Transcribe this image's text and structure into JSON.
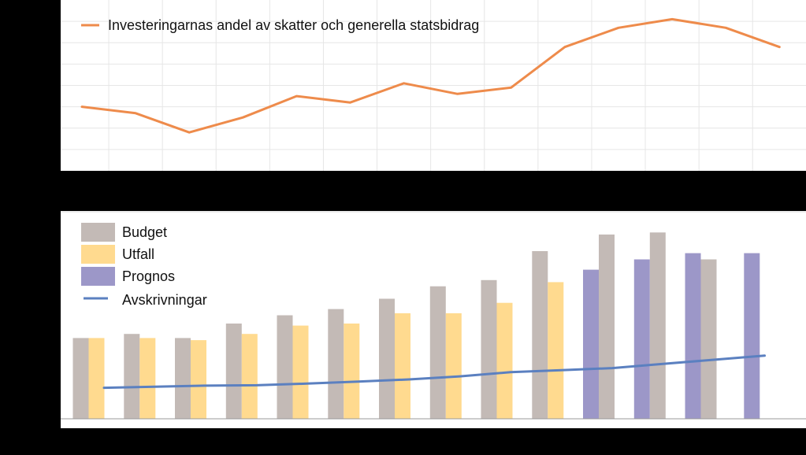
{
  "chart_data": [
    {
      "type": "line",
      "title": "",
      "x_count": 14,
      "ylim": [
        0,
        8
      ],
      "grid": true,
      "legend_placement": "top-left",
      "series": [
        {
          "name": "Investeringarnas andel av skatter och generella statsbidrag",
          "color": "#EE8B4B",
          "values": [
            3.0,
            2.7,
            1.8,
            2.5,
            3.5,
            3.2,
            4.1,
            3.6,
            3.9,
            5.8,
            6.7,
            7.1,
            6.7,
            5.8
          ]
        }
      ]
    },
    {
      "type": "bar",
      "title": "",
      "x_count": 14,
      "ylim": [
        0,
        10
      ],
      "grid": false,
      "legend_placement": "top-left",
      "series": [
        {
          "name": "Budget",
          "color": "#C3BAB6",
          "values": [
            3.9,
            4.1,
            3.9,
            4.6,
            5.0,
            5.3,
            5.8,
            6.4,
            6.7,
            8.1,
            8.9,
            9.0,
            7.7,
            null
          ]
        },
        {
          "name": "Utfall",
          "color": "#FFDA8F",
          "values": [
            3.9,
            3.9,
            3.8,
            4.1,
            4.5,
            4.6,
            5.1,
            5.1,
            5.6,
            6.6,
            null,
            null,
            null,
            null
          ]
        },
        {
          "name": "Prognos",
          "color": "#9C97C8",
          "values": [
            null,
            null,
            null,
            null,
            null,
            null,
            null,
            null,
            null,
            null,
            7.2,
            7.7,
            8.0,
            8.0
          ]
        },
        {
          "name": "Avskrivningar",
          "type": "line",
          "color": "#5B80C0",
          "values": [
            1.5,
            1.55,
            1.6,
            1.62,
            1.7,
            1.8,
            1.9,
            2.05,
            2.25,
            2.35,
            2.45,
            2.65,
            2.85,
            3.05
          ]
        }
      ]
    }
  ]
}
